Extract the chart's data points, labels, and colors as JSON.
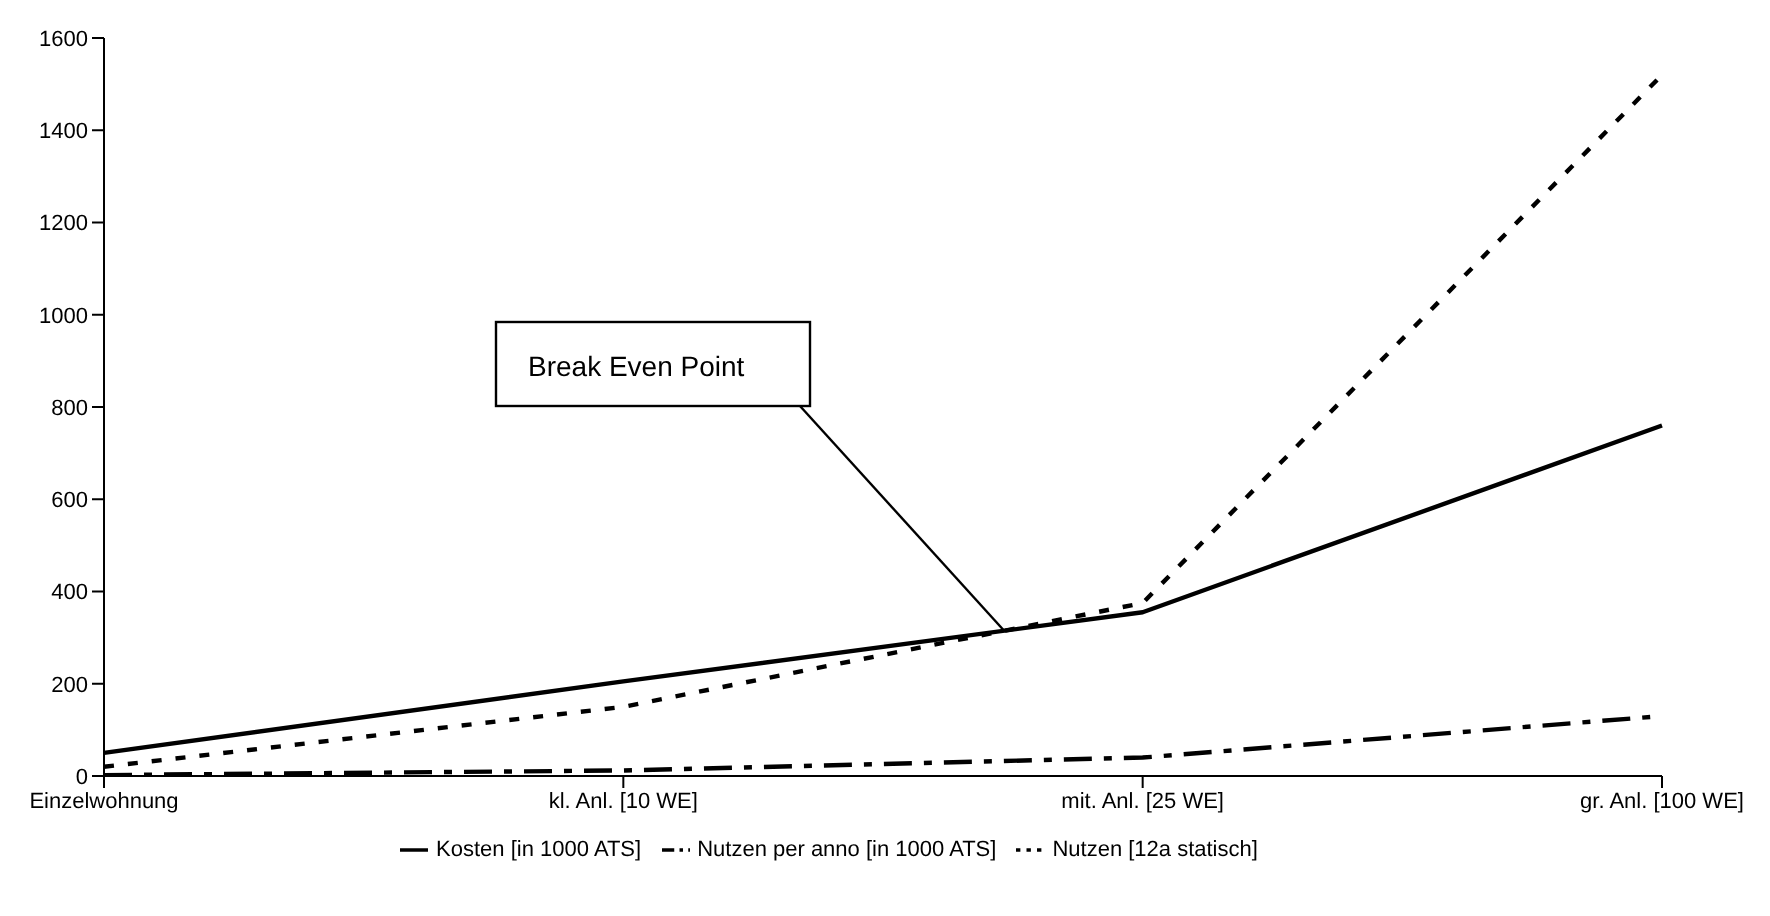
{
  "chart_data": {
    "type": "line",
    "categories": [
      "Einzelwohnung",
      "kl. Anl. [10 WE]",
      "mit. Anl. [25 WE]",
      "gr. Anl. [100 WE]"
    ],
    "series": [
      {
        "name": "Kosten [in 1000 ATS]",
        "color": "#000000",
        "line_style": "solid",
        "values": [
          50,
          205,
          355,
          760
        ]
      },
      {
        "name": "Nutzen per anno [in 1000 ATS]",
        "color": "#000000",
        "line_style": "dashed",
        "values": [
          2,
          12,
          40,
          130
        ]
      },
      {
        "name": "Nutzen [12a statisch]",
        "color": "#000000",
        "line_style": "dotted",
        "values": [
          20,
          150,
          375,
          1520
        ]
      }
    ],
    "ylim": [
      0,
      1600
    ],
    "yticks": [
      0,
      200,
      400,
      600,
      800,
      1000,
      1200,
      1400,
      1600
    ],
    "grid": false,
    "legend": "bottom",
    "marker": "none",
    "annotations": [
      "Break Even Point"
    ]
  }
}
